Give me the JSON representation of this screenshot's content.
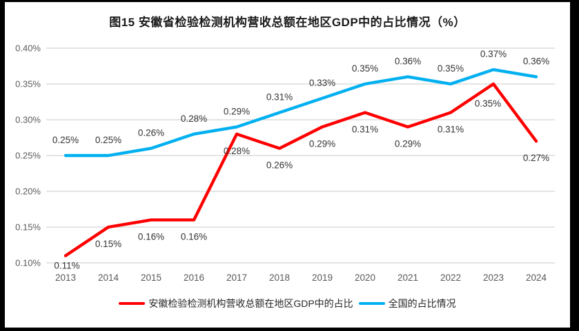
{
  "colors": {
    "anhui_line": "#FF0000",
    "national_line": "#00B0F0",
    "gridline": "#DBDBDB",
    "tick_text": "#595959",
    "data_label_text": "#333333",
    "title_text": "#1A1A1A",
    "background": "#FFFFFF",
    "frame": "#000000"
  },
  "chart_data": {
    "type": "line",
    "title": "图15 安徽省检验检测机构营收总额在地区GDP中的占比情况（%）",
    "categories": [
      "2013",
      "2014",
      "2015",
      "2016",
      "2017",
      "2018",
      "2019",
      "2020",
      "2021",
      "2022",
      "2023",
      "2024"
    ],
    "series": [
      {
        "key": "anhui",
        "name": "安徽检验检测机构营收总额在地区GDP中的占比",
        "color_key": "anhui_line",
        "values": [
          0.11,
          0.15,
          0.16,
          0.16,
          0.28,
          0.26,
          0.29,
          0.31,
          0.29,
          0.31,
          0.35,
          0.27
        ],
        "point_labels": [
          "0.11%",
          "0.15%",
          "0.16%",
          "0.16%",
          "0.28%",
          "0.26%",
          "0.29%",
          "0.31%",
          "0.29%",
          "0.31%",
          "0.35%",
          "0.27%"
        ],
        "label_placement": "below"
      },
      {
        "key": "national",
        "name": "全国的占比情况",
        "color_key": "national_line",
        "values": [
          0.25,
          0.25,
          0.26,
          0.28,
          0.29,
          0.31,
          0.33,
          0.35,
          0.36,
          0.35,
          0.37,
          0.36
        ],
        "point_labels": [
          "0.25%",
          "0.25%",
          "0.26%",
          "0.28%",
          "0.29%",
          "0.31%",
          "0.33%",
          "0.35%",
          "0.36%",
          "0.35%",
          "0.37%",
          "0.36%"
        ],
        "label_placement": "above"
      }
    ],
    "y_ticks": [
      "0.40%",
      "0.35%",
      "0.30%",
      "0.25%",
      "0.20%",
      "0.15%",
      "0.10%"
    ],
    "ylim": [
      0.1,
      0.4
    ],
    "ytick_interval": 0.05,
    "grid": true,
    "data_labels": true,
    "legend_position": "bottom"
  }
}
